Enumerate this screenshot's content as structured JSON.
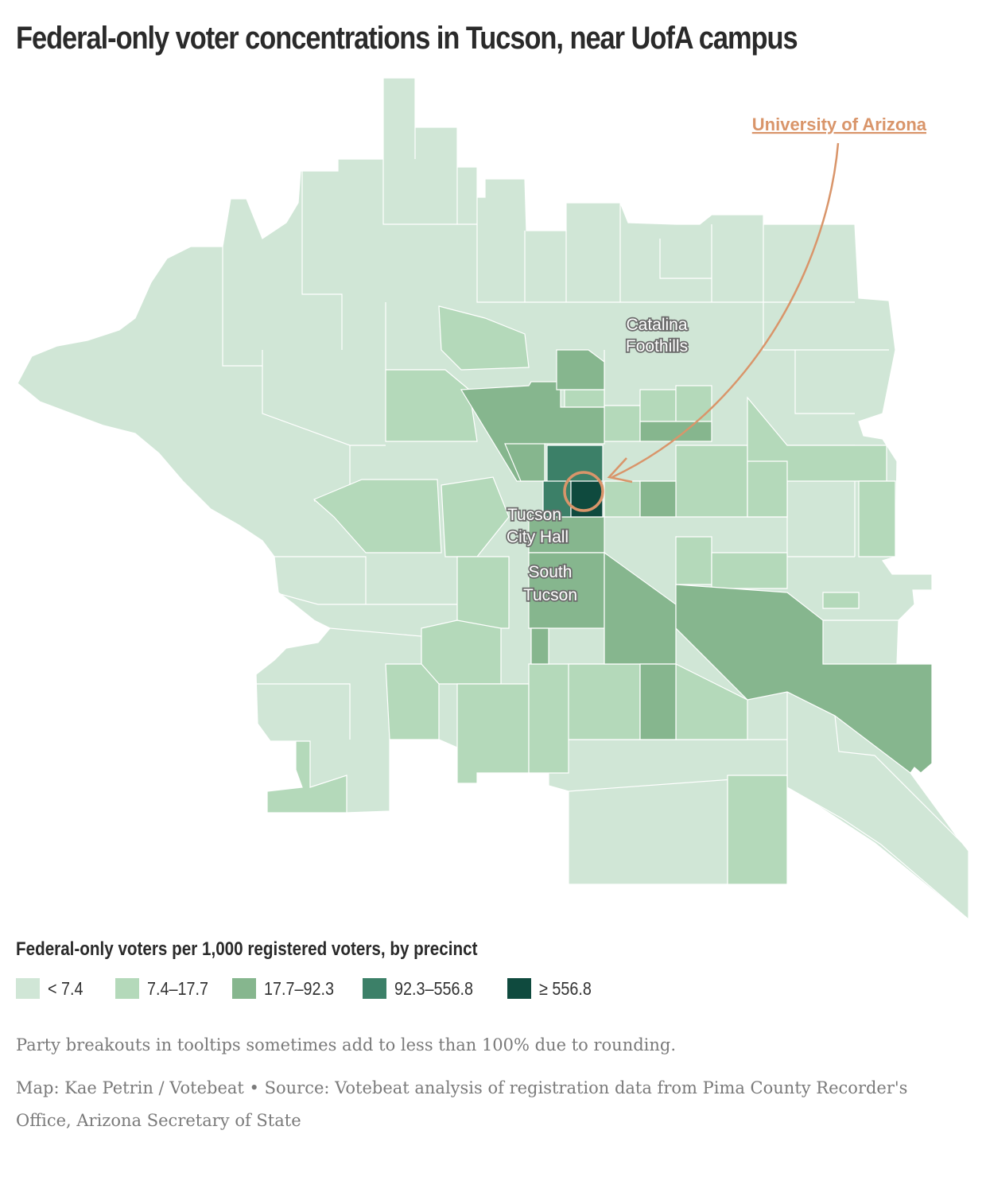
{
  "title": "Federal-only voter concentrations in Tucson, near UofA campus",
  "map": {
    "labels": {
      "catalina_1": "Catalina",
      "catalina_2": "Foothills",
      "cityhall_1": "Tucson",
      "cityhall_2": "City Hall",
      "south_1": "South",
      "south_2": "Tucson"
    },
    "callout": "University of Arizona",
    "callout_color": "#d9956a",
    "stroke_color": "#ffffff"
  },
  "legend": {
    "title": "Federal-only voters per 1,000 registered voters, by precinct",
    "items": [
      {
        "label": "< 7.4",
        "color": "#d0e6d6"
      },
      {
        "label": "7.4–17.7",
        "color": "#b4d9ba"
      },
      {
        "label": "17.7–92.3",
        "color": "#86b68e"
      },
      {
        "label": "92.3–556.8",
        "color": "#3c8068"
      },
      {
        "label": "≥ 556.8",
        "color": "#0f4a3e"
      }
    ]
  },
  "note": "Party breakouts in tooltips sometimes add to less than 100% due to rounding.",
  "credit": "Map: Kae Petrin / Votebeat • Source: Votebeat analysis of registration data from Pima County Recorder's Office, Arizona Secretary of State"
}
